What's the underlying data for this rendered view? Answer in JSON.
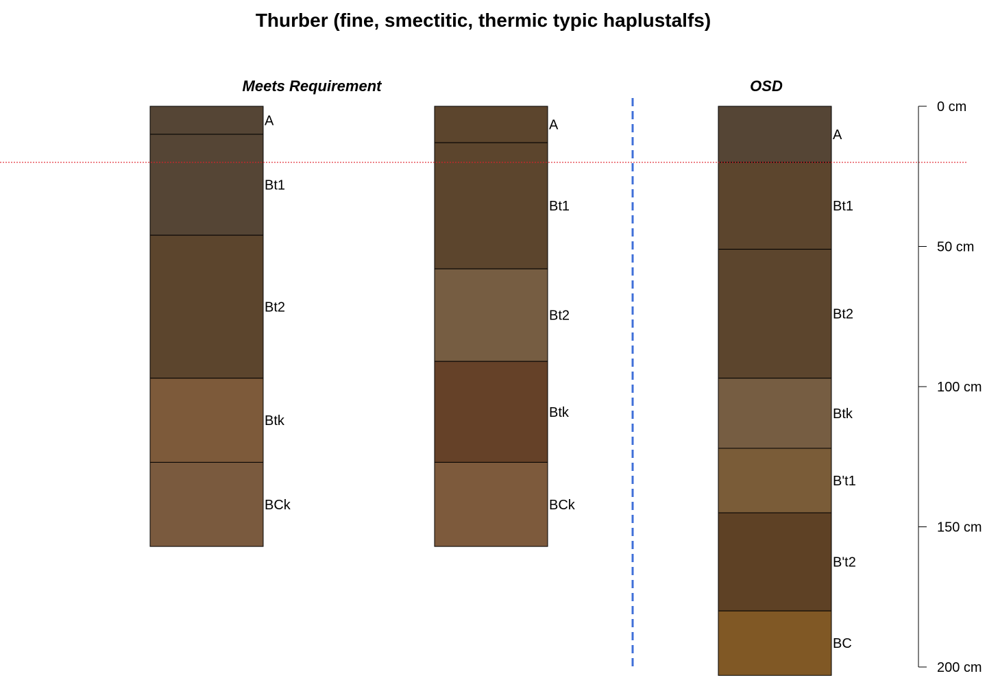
{
  "title": "Thurber (fine, smectitic, thermic typic haplustalfs)",
  "groups": [
    {
      "label": "Meets Requirement"
    },
    {
      "label": "OSD"
    }
  ],
  "depth_axis": {
    "unit": "cm",
    "ticks": [
      "0 cm",
      "50 cm",
      "100 cm",
      "150 cm",
      "200 cm"
    ],
    "tick_values": [
      0,
      50,
      100,
      150,
      200
    ]
  },
  "reference_depth_cm": 20,
  "chart_data": {
    "type": "soil-profile",
    "depth_unit": "cm",
    "profiles": [
      {
        "group": "Meets Requirement",
        "horizons": [
          {
            "name": "A",
            "top": 0,
            "bottom": 10,
            "color": "#554535"
          },
          {
            "name": "Bt1",
            "top": 10,
            "bottom": 46,
            "color": "#554535"
          },
          {
            "name": "Bt2",
            "top": 46,
            "bottom": 97,
            "color": "#5C452D"
          },
          {
            "name": "Btk",
            "top": 97,
            "bottom": 127,
            "color": "#7D5A3A"
          },
          {
            "name": "BCk",
            "top": 127,
            "bottom": 157,
            "color": "#7A5A3E"
          }
        ]
      },
      {
        "group": "",
        "horizons": [
          {
            "name": "A",
            "top": 0,
            "bottom": 13,
            "color": "#5C452D"
          },
          {
            "name": "Bt1",
            "top": 13,
            "bottom": 58,
            "color": "#5C452D"
          },
          {
            "name": "Bt2",
            "top": 58,
            "bottom": 91,
            "color": "#765D42"
          },
          {
            "name": "Btk",
            "top": 91,
            "bottom": 127,
            "color": "#654128"
          },
          {
            "name": "BCk",
            "top": 127,
            "bottom": 157,
            "color": "#7D5A3C"
          }
        ]
      },
      {
        "group": "OSD",
        "horizons": [
          {
            "name": "A",
            "top": 0,
            "bottom": 20,
            "color": "#554535"
          },
          {
            "name": "Bt1",
            "top": 20,
            "bottom": 51,
            "color": "#5C452D"
          },
          {
            "name": "Bt2",
            "top": 51,
            "bottom": 97,
            "color": "#5C452D"
          },
          {
            "name": "Btk",
            "top": 97,
            "bottom": 122,
            "color": "#765D42"
          },
          {
            "name": "B't1",
            "top": 122,
            "bottom": 145,
            "color": "#7A5C38"
          },
          {
            "name": "B't2",
            "top": 145,
            "bottom": 180,
            "color": "#5E4125"
          },
          {
            "name": "BC",
            "top": 180,
            "bottom": 203,
            "color": "#805825"
          }
        ]
      }
    ],
    "separator_after_profile": 2,
    "ylim": [
      0,
      203
    ]
  }
}
